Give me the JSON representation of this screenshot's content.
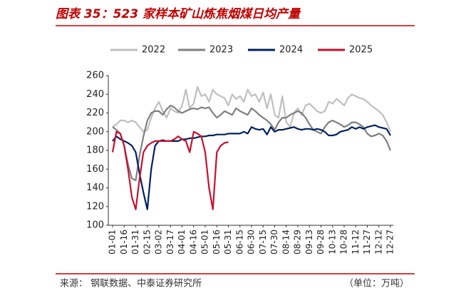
{
  "chart_data": {
    "type": "line",
    "title": "图表 35：523 家样本矿山炼焦烟煤日均产量",
    "source": "来源：   钢联数据、中泰证券研究所",
    "unit": "（单位：万吨）",
    "categories": [
      "01-01",
      null,
      null,
      "01-16",
      null,
      null,
      "01-31",
      null,
      null,
      "02-15",
      null,
      null,
      "03-02",
      null,
      null,
      "03-17",
      null,
      null,
      "04-01",
      null,
      null,
      "04-16",
      null,
      null,
      "05-01",
      null,
      null,
      "05-16",
      null,
      null,
      "05-31",
      null,
      null,
      "06-15",
      null,
      null,
      "06-30",
      null,
      null,
      "07-15",
      null,
      null,
      "07-30",
      null,
      null,
      "08-14",
      null,
      null,
      "08-29",
      null,
      null,
      "09-13",
      null,
      null,
      "09-28",
      null,
      null,
      "10-13",
      null,
      null,
      "10-28",
      null,
      null,
      "11-12",
      null,
      null,
      "11-27",
      null,
      null,
      "12-12",
      null,
      null,
      "12-27"
    ],
    "series": [
      {
        "name": "2022",
        "color": "#bfbfbf",
        "values": [
          205,
          208,
          212,
          212,
          210,
          212,
          210,
          205,
          200,
          202,
          215,
          225,
          232,
          222,
          215,
          225,
          222,
          220,
          228,
          245,
          225,
          230,
          248,
          238,
          240,
          232,
          245,
          240,
          238,
          236,
          228,
          240,
          235,
          238,
          232,
          245,
          238,
          240,
          232,
          242,
          225,
          240,
          218,
          215,
          238,
          210,
          205,
          220,
          225,
          218,
          228,
          230,
          226,
          222,
          220,
          222,
          232,
          230,
          235,
          232,
          228,
          236,
          240,
          238,
          236,
          235,
          232,
          228,
          225,
          222,
          218,
          210,
          200
        ]
      },
      {
        "name": "2023",
        "color": "#7f7f7f",
        "values": [
          205,
          202,
          198,
          185,
          165,
          150,
          148,
          175,
          195,
          212,
          220,
          222,
          222,
          218,
          224,
          228,
          226,
          222,
          220,
          222,
          224,
          225,
          224,
          226,
          225,
          226,
          220,
          215,
          218,
          222,
          220,
          218,
          225,
          222,
          220,
          218,
          225,
          222,
          218,
          215,
          212,
          208,
          202,
          210,
          215,
          215,
          218,
          220,
          222,
          220,
          215,
          208,
          202,
          200,
          198,
          205,
          210,
          212,
          210,
          208,
          205,
          207,
          210,
          210,
          208,
          205,
          198,
          195,
          196,
          198,
          196,
          190,
          180
        ]
      },
      {
        "name": "2024",
        "color": "#002060",
        "values": [
          190,
          195,
          192,
          190,
          188,
          185,
          178,
          155,
          135,
          117,
          160,
          185,
          190,
          191,
          190,
          190,
          190,
          190,
          192,
          192,
          193,
          193,
          194,
          195,
          195,
          196,
          196,
          197,
          197,
          197,
          198,
          198,
          198,
          198,
          200,
          198,
          205,
          203,
          202,
          203,
          197,
          205,
          200,
          202,
          202,
          203,
          204,
          205,
          203,
          202,
          203,
          203,
          202,
          203,
          202,
          200,
          196,
          196,
          197,
          200,
          201,
          202,
          205,
          203,
          205,
          203,
          205,
          206,
          207,
          205,
          204,
          203,
          196
        ]
      },
      {
        "name": "2025",
        "color": "#c8102e",
        "values": [
          178,
          200,
          198,
          185,
          160,
          130,
          117,
          150,
          178,
          185,
          188,
          190,
          190,
          190,
          190,
          190,
          192,
          195,
          192,
          190,
          178,
          200,
          198,
          195,
          178,
          140,
          117,
          178,
          185,
          188,
          189,
          null,
          null,
          null,
          null,
          null,
          null,
          null,
          null,
          null,
          null,
          null,
          null,
          null,
          null,
          null,
          null,
          null,
          null,
          null,
          null,
          null,
          null,
          null,
          null,
          null,
          null,
          null,
          null,
          null,
          null,
          null,
          null,
          null,
          null,
          null,
          null,
          null,
          null,
          null,
          null,
          null,
          null
        ]
      }
    ],
    "ylim": [
      100,
      260
    ],
    "yticks": [
      100,
      120,
      140,
      160,
      180,
      200,
      220,
      240,
      260
    ]
  }
}
